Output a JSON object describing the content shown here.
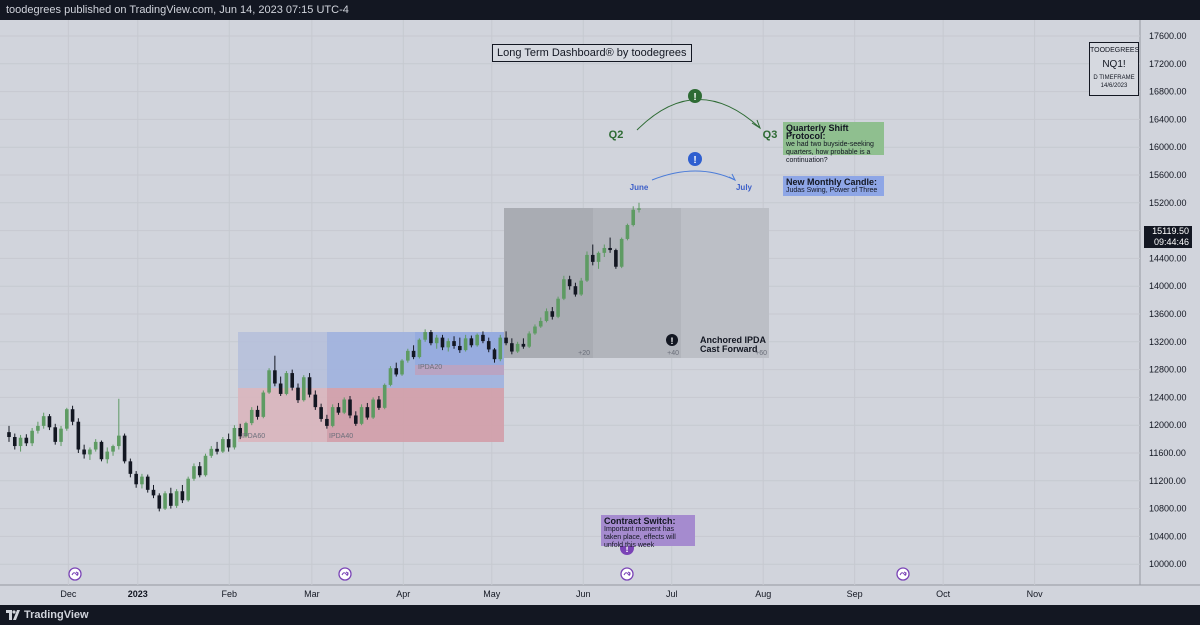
{
  "header": {
    "published_text": "toodegrees published on TradingView.com, Jun 14, 2023 07:15 UTC-4"
  },
  "footer": {
    "brand": "TradingView"
  },
  "chart_title": "Long Term Dashboard® by toodegrees",
  "info_box": {
    "author": "TOODEGREES",
    "symbol": "NQ1!",
    "timeframe": "D TIMEFRAME",
    "date": "14/6/2023"
  },
  "last_price": {
    "value": "15119.50",
    "countdown": "09:44:46"
  },
  "colors": {
    "background": "#d1d4dc",
    "up_candle": "#5e9b63",
    "down_candle": "#131722",
    "quarter_arc": "#2e6b34",
    "month_arc": "#4a7bd8",
    "contract_switch": "#7a43b6"
  },
  "annotations": {
    "q_start": "Q2",
    "q_end": "Q3",
    "m_start": "June",
    "m_end": "July",
    "qsp_title": "Quarterly Shift Protocol:",
    "qsp_text": "we had two buyside-seeking quarters, how probable is a continuation?",
    "nmc_title": "New Monthly Candle:",
    "nmc_text": "Judas Swing, Power of Three",
    "cs_title": "Contract Switch:",
    "cs_text": "Important moment has taken place, effects will unfold this week",
    "anchored_l1": "Anchored IPDA",
    "anchored_l2": "Cast Forward",
    "ipda60": "IPDA60",
    "ipda40": "IPDA40",
    "ipda20": "IPDA20",
    "fwd20": "+20",
    "fwd40": "+40",
    "fwd60": "+60",
    "alert_icon_glyph": "!",
    "event_icon": "arrow-right-icon"
  },
  "chart_data": {
    "type": "candlestick",
    "title": "Long Term Dashboard® by toodegrees",
    "symbol": "NQ1!",
    "timeframe": "D",
    "x_tick_labels": [
      "Dec",
      "2023",
      "Feb",
      "Mar",
      "Apr",
      "May",
      "Jun",
      "Jul",
      "Aug",
      "Sep",
      "Oct",
      "Nov"
    ],
    "y_tick_labels": [
      "17600.00",
      "17200.00",
      "16800.00",
      "16400.00",
      "16000.00",
      "15600.00",
      "15200.00",
      "14800.00",
      "14400.00",
      "14000.00",
      "13600.00",
      "13200.00",
      "12800.00",
      "12400.00",
      "12000.00",
      "11600.00",
      "11200.00",
      "10800.00",
      "10400.00",
      "10000.00"
    ],
    "ylim": [
      9800,
      17800
    ],
    "grid": true,
    "start_date": "2022-11-18",
    "end_date": "2023-06-14",
    "candles": [
      [
        11900,
        11990,
        11760,
        11830
      ],
      [
        11830,
        11880,
        11650,
        11700
      ],
      [
        11700,
        11860,
        11620,
        11820
      ],
      [
        11820,
        11870,
        11700,
        11740
      ],
      [
        11740,
        11960,
        11700,
        11920
      ],
      [
        11920,
        12050,
        11880,
        11990
      ],
      [
        11990,
        12180,
        11950,
        12130
      ],
      [
        12130,
        12160,
        11930,
        11970
      ],
      [
        11970,
        12020,
        11720,
        11760
      ],
      [
        11760,
        11990,
        11700,
        11950
      ],
      [
        11950,
        12250,
        11920,
        12230
      ],
      [
        12230,
        12280,
        12000,
        12050
      ],
      [
        12050,
        12100,
        11600,
        11650
      ],
      [
        11650,
        11720,
        11520,
        11580
      ],
      [
        11580,
        11680,
        11500,
        11650
      ],
      [
        11650,
        11800,
        11620,
        11760
      ],
      [
        11760,
        11780,
        11480,
        11510
      ],
      [
        11510,
        11680,
        11450,
        11620
      ],
      [
        11620,
        11720,
        11560,
        11700
      ],
      [
        11700,
        12380,
        11650,
        11850
      ],
      [
        11850,
        11880,
        11450,
        11480
      ],
      [
        11480,
        11520,
        11250,
        11300
      ],
      [
        11300,
        11340,
        11100,
        11150
      ],
      [
        11150,
        11300,
        11090,
        11260
      ],
      [
        11260,
        11290,
        11030,
        11070
      ],
      [
        11070,
        11140,
        10950,
        10990
      ],
      [
        10990,
        11020,
        10760,
        10800
      ],
      [
        10800,
        11050,
        10780,
        11020
      ],
      [
        11020,
        11100,
        10800,
        10840
      ],
      [
        10840,
        11080,
        10810,
        11050
      ],
      [
        11050,
        11140,
        10880,
        10920
      ],
      [
        10920,
        11260,
        10900,
        11230
      ],
      [
        11230,
        11450,
        11200,
        11410
      ],
      [
        11410,
        11470,
        11250,
        11280
      ],
      [
        11280,
        11590,
        11260,
        11560
      ],
      [
        11560,
        11700,
        11530,
        11660
      ],
      [
        11660,
        11760,
        11580,
        11620
      ],
      [
        11620,
        11830,
        11600,
        11800
      ],
      [
        11800,
        11880,
        11620,
        11680
      ],
      [
        11680,
        12000,
        11650,
        11960
      ],
      [
        11960,
        12020,
        11800,
        11840
      ],
      [
        11840,
        12050,
        11820,
        12030
      ],
      [
        12030,
        12260,
        12000,
        12220
      ],
      [
        12220,
        12280,
        12080,
        12120
      ],
      [
        12120,
        12500,
        12100,
        12470
      ],
      [
        12470,
        12820,
        12450,
        12790
      ],
      [
        12790,
        13000,
        12560,
        12600
      ],
      [
        12600,
        12700,
        12420,
        12450
      ],
      [
        12450,
        12780,
        12430,
        12750
      ],
      [
        12750,
        12800,
        12500,
        12540
      ],
      [
        12540,
        12600,
        12320,
        12360
      ],
      [
        12360,
        12720,
        12340,
        12690
      ],
      [
        12690,
        12750,
        12400,
        12440
      ],
      [
        12440,
        12500,
        12220,
        12260
      ],
      [
        12260,
        12310,
        12050,
        12090
      ],
      [
        12090,
        12150,
        11950,
        11990
      ],
      [
        11990,
        12300,
        11970,
        12260
      ],
      [
        12260,
        12320,
        12150,
        12180
      ],
      [
        12180,
        12400,
        12160,
        12370
      ],
      [
        12370,
        12420,
        12100,
        12140
      ],
      [
        12140,
        12200,
        11990,
        12020
      ],
      [
        12020,
        12300,
        12000,
        12260
      ],
      [
        12260,
        12320,
        12080,
        12110
      ],
      [
        12110,
        12400,
        12090,
        12370
      ],
      [
        12370,
        12420,
        12220,
        12250
      ],
      [
        12250,
        12600,
        12230,
        12580
      ],
      [
        12580,
        12850,
        12560,
        12820
      ],
      [
        12820,
        12900,
        12700,
        12730
      ],
      [
        12730,
        12950,
        12710,
        12930
      ],
      [
        12930,
        13100,
        12900,
        13070
      ],
      [
        13070,
        13150,
        12950,
        12980
      ],
      [
        12980,
        13250,
        12960,
        13230
      ],
      [
        13230,
        13380,
        13200,
        13340
      ],
      [
        13340,
        13370,
        13150,
        13180
      ],
      [
        13180,
        13300,
        13100,
        13260
      ],
      [
        13260,
        13300,
        13080,
        13120
      ],
      [
        13120,
        13250,
        13060,
        13210
      ],
      [
        13210,
        13280,
        13100,
        13140
      ],
      [
        13140,
        13260,
        13040,
        13080
      ],
      [
        13080,
        13300,
        13060,
        13250
      ],
      [
        13250,
        13290,
        13120,
        13150
      ],
      [
        13150,
        13320,
        13130,
        13300
      ],
      [
        13300,
        13350,
        13180,
        13210
      ],
      [
        13210,
        13260,
        13050,
        13090
      ],
      [
        13090,
        13110,
        12900,
        12950
      ],
      [
        12950,
        13300,
        12920,
        13260
      ],
      [
        13260,
        13350,
        13150,
        13180
      ],
      [
        13180,
        13250,
        13020,
        13060
      ],
      [
        13060,
        13200,
        13040,
        13170
      ],
      [
        13170,
        13250,
        13100,
        13130
      ],
      [
        13130,
        13350,
        13110,
        13320
      ],
      [
        13320,
        13450,
        13300,
        13420
      ],
      [
        13420,
        13550,
        13400,
        13500
      ],
      [
        13500,
        13680,
        13480,
        13640
      ],
      [
        13640,
        13700,
        13520,
        13560
      ],
      [
        13560,
        13850,
        13540,
        13820
      ],
      [
        13820,
        14150,
        13800,
        14100
      ],
      [
        14100,
        14150,
        13950,
        14000
      ],
      [
        14000,
        14050,
        13850,
        13880
      ],
      [
        13880,
        14120,
        13860,
        14080
      ],
      [
        14080,
        14500,
        14060,
        14450
      ],
      [
        14450,
        14600,
        14300,
        14350
      ],
      [
        14350,
        14500,
        14250,
        14480
      ],
      [
        14480,
        14600,
        14420,
        14550
      ],
      [
        14550,
        14700,
        14480,
        14520
      ],
      [
        14520,
        14540,
        14250,
        14280
      ],
      [
        14280,
        14700,
        14260,
        14680
      ],
      [
        14680,
        14900,
        14660,
        14880
      ],
      [
        14880,
        15150,
        14860,
        15100
      ],
      [
        15100,
        15200,
        15060,
        15119.5
      ]
    ]
  }
}
